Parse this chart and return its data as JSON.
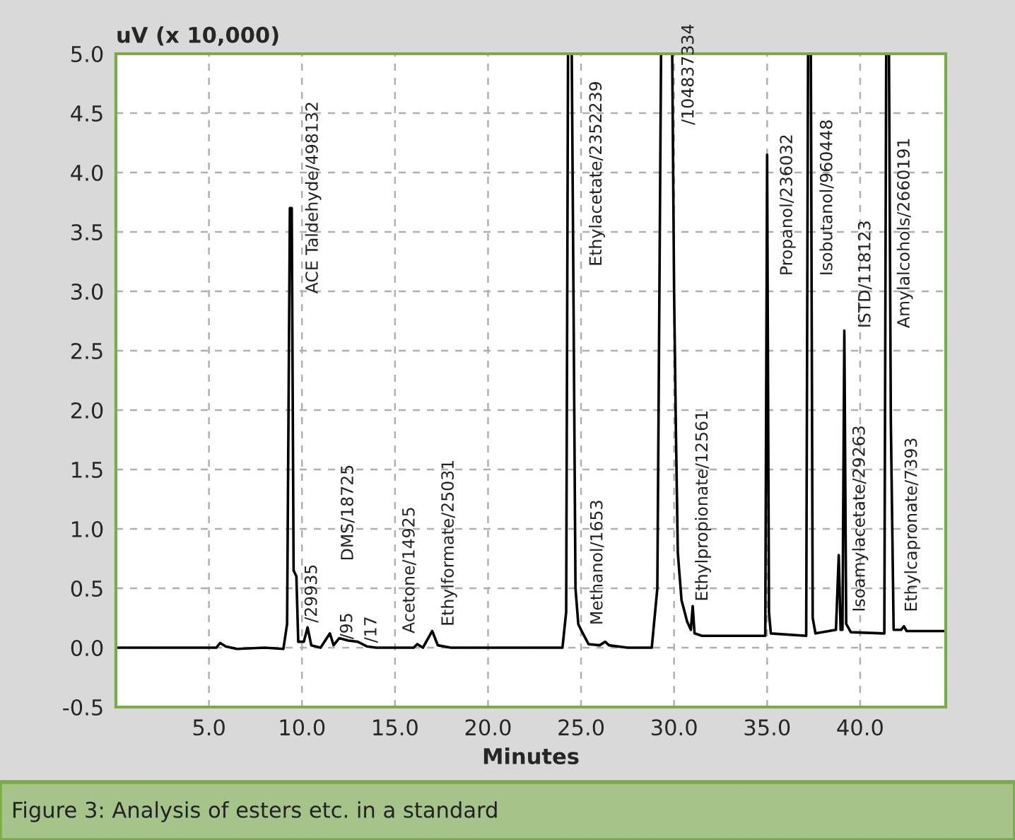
{
  "chart_data": {
    "type": "line",
    "xlabel": "Minutes",
    "ylabel": "uV (x 10,000)",
    "xlim": [
      0,
      44.6
    ],
    "ylim": [
      -0.5,
      5.0
    ],
    "xticks": [
      {
        "value": 5,
        "label": "5.0"
      },
      {
        "value": 10,
        "label": "10.0"
      },
      {
        "value": 15,
        "label": "15.0"
      },
      {
        "value": 20,
        "label": "20.0"
      },
      {
        "value": 25,
        "label": "25.0"
      },
      {
        "value": 30,
        "label": "30.0"
      },
      {
        "value": 35,
        "label": "35.0"
      },
      {
        "value": 40,
        "label": "40.0"
      }
    ],
    "yticks": [
      {
        "value": -0.5,
        "label": "-0.5"
      },
      {
        "value": 0,
        "label": "0.0"
      },
      {
        "value": 0.5,
        "label": "0.5"
      },
      {
        "value": 1,
        "label": "1.0"
      },
      {
        "value": 1.5,
        "label": "1.5"
      },
      {
        "value": 2,
        "label": "2.0"
      },
      {
        "value": 2.5,
        "label": "2.5"
      },
      {
        "value": 3,
        "label": "3.0"
      },
      {
        "value": 3.5,
        "label": "3.5"
      },
      {
        "value": 4,
        "label": "4.0"
      },
      {
        "value": 4.5,
        "label": "4.5"
      },
      {
        "value": 5,
        "label": "5.0"
      }
    ],
    "grid": true,
    "marker": "none",
    "line_style": "solid",
    "series": [
      {
        "color": "#000000",
        "x": [
          0,
          5.4,
          5.6,
          5.9,
          6.5,
          8.0,
          9.0,
          9.2,
          9.35,
          9.45,
          9.55,
          9.7,
          9.8,
          10.1,
          10.3,
          10.5,
          11.0,
          11.5,
          11.7,
          12.0,
          12.5,
          13.0,
          13.5,
          14.0,
          16.0,
          16.2,
          16.5,
          17.0,
          17.3,
          18.0,
          24.0,
          24.2,
          24.3,
          24.5,
          24.6,
          24.7,
          24.85,
          25.0,
          25.4,
          26.0,
          26.3,
          26.5,
          27.5,
          28.8,
          29.1,
          29.3,
          29.9,
          30.0,
          30.1,
          30.2,
          30.4,
          30.7,
          30.9,
          31.0,
          31.1,
          31.5,
          34.9,
          35.0,
          35.05,
          35.1,
          35.2,
          37.1,
          37.2,
          37.35,
          37.45,
          37.6,
          38.7,
          38.85,
          38.95,
          39.05,
          39.15,
          39.25,
          39.5,
          41.3,
          41.4,
          41.55,
          41.65,
          41.8,
          42.2,
          42.35,
          42.5,
          44.6
        ],
        "values": [
          0,
          0,
          0.04,
          0.01,
          -0.01,
          0,
          -0.01,
          0.2,
          3.7,
          3.7,
          0.65,
          0.6,
          0.05,
          0.05,
          0.17,
          0.02,
          0,
          0.12,
          0.02,
          0.08,
          0.06,
          0.05,
          0.01,
          0,
          0,
          0.03,
          0,
          0.14,
          0.02,
          0,
          0,
          0.3,
          5.0,
          5.0,
          2.8,
          0.5,
          0.2,
          0.15,
          0.03,
          0.02,
          0.05,
          0.02,
          0,
          0,
          0.5,
          5.0,
          5.0,
          3.0,
          1.8,
          0.8,
          0.4,
          0.22,
          0.15,
          0.35,
          0.12,
          0.1,
          0.1,
          4.15,
          2.2,
          0.3,
          0.12,
          0.1,
          5.0,
          5.0,
          0.25,
          0.12,
          0.15,
          0.78,
          0.15,
          0.15,
          2.67,
          0.2,
          0.13,
          0.12,
          5.0,
          5.0,
          1.9,
          0.15,
          0.15,
          0.18,
          0.14,
          0.14
        ]
      }
    ],
    "annotations": [
      "ACE Taldehyde/498132",
      "/29935",
      "DMS/18725",
      "/95",
      "/17",
      "Acetone/14925",
      "Ethylformate/25031",
      "Ethylacetate/2352239",
      "Methanol/1653",
      "/104837334",
      "Ethylpropionate/12561",
      "Propanol/236032",
      "Isobutanol/960448",
      "ISTD/118123",
      "Isoamylacetate/29263",
      "Amylalcohols/2660191",
      "Ethylcapronate/7393",
      "Figure 3: Analysis of esters etc. in a standard"
    ]
  }
}
